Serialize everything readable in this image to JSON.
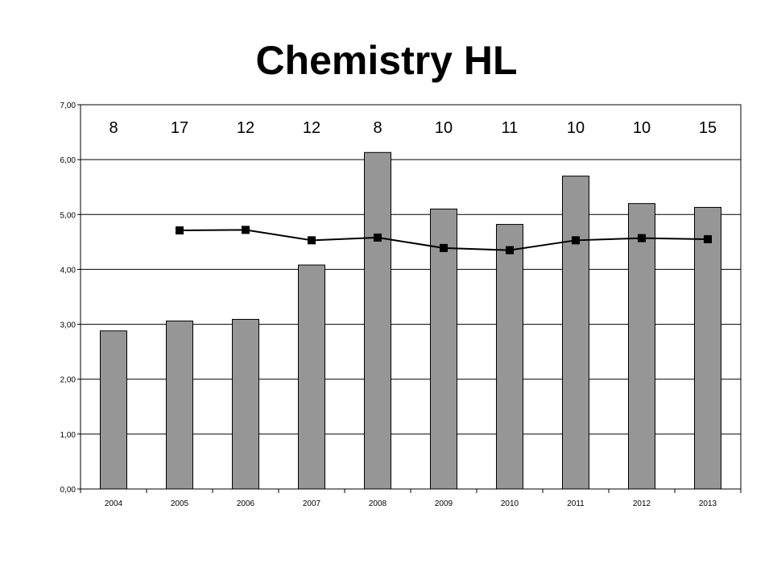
{
  "title": "Chemistry HL",
  "chart_data": {
    "type": "bar",
    "categories": [
      "2004",
      "2005",
      "2006",
      "2007",
      "2008",
      "2009",
      "2010",
      "2011",
      "2012",
      "2013"
    ],
    "series": [
      {
        "kind": "bar",
        "values": [
          2.88,
          3.06,
          3.09,
          4.08,
          6.13,
          5.1,
          4.82,
          5.7,
          5.2,
          5.13
        ],
        "color": "#969696"
      },
      {
        "kind": "line",
        "values": [
          null,
          4.71,
          4.72,
          4.53,
          4.58,
          4.39,
          4.35,
          4.53,
          4.57,
          4.55
        ],
        "color": "#000000"
      }
    ],
    "top_labels": [
      "8",
      "17",
      "12",
      "12",
      "8",
      "10",
      "11",
      "10",
      "10",
      "15"
    ],
    "y_ticks": [
      "0,00",
      "1,00",
      "2,00",
      "3,00",
      "4,00",
      "5,00",
      "6,00",
      "7,00"
    ],
    "ylim": [
      0,
      7
    ],
    "grid": true,
    "xlabel": "",
    "ylabel": ""
  }
}
